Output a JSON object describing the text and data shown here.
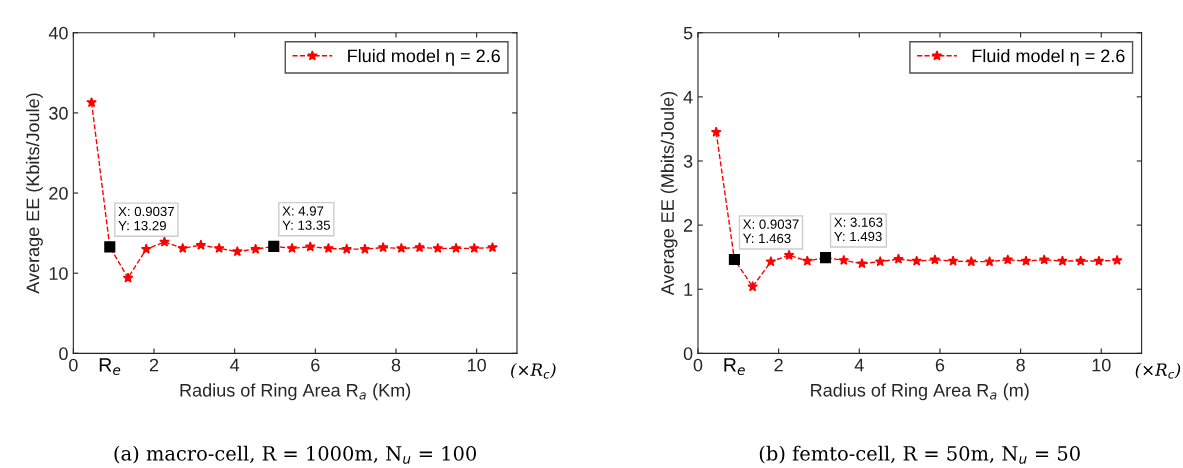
{
  "chart_data": [
    {
      "type": "line",
      "title": "(a) macro-cell, R = 1000m, N$_{u}$ = 100",
      "xlabel": "Radius of Ring Area R$_{a}$ (Km)",
      "ylabel": "Average EE (Kbits/Joule)",
      "x": [
        0.4518,
        0.9037,
        1.3555,
        1.8074,
        2.2592,
        2.7111,
        3.1629,
        3.6148,
        4.0666,
        4.5185,
        4.97,
        5.4222,
        5.874,
        6.3259,
        6.7777,
        7.2296,
        7.6814,
        8.1333,
        8.5851,
        9.037,
        9.4888,
        9.9407,
        10.3925
      ],
      "series": [
        {
          "name": "Fluid model η = 2.6",
          "color": "#ff0000",
          "values": [
            31.3,
            13.29,
            9.4,
            13.0,
            13.9,
            13.1,
            13.5,
            13.1,
            12.7,
            13.0,
            13.35,
            13.1,
            13.3,
            13.1,
            13.0,
            13.0,
            13.2,
            13.1,
            13.2,
            13.1,
            13.1,
            13.1,
            13.2
          ]
        }
      ],
      "xlim": [
        0,
        11
      ],
      "xticks": [
        0,
        2,
        4,
        6,
        8,
        10
      ],
      "ylim": [
        0,
        40
      ],
      "yticks": [
        0,
        10,
        20,
        30,
        40
      ],
      "annotations": [
        {
          "text": "X: 0.9037\nY: 13.29",
          "x": 0.9037,
          "y": 13.29
        },
        {
          "text": "X: 4.97\nY: 13.35",
          "x": 4.97,
          "y": 13.35
        },
        "R$_{e}$",
        "(×R$_{c}$)"
      ],
      "grid": false,
      "legend": "top right",
      "marker": "star",
      "line_style": "dashed"
    },
    {
      "type": "line",
      "title": "(b) femto-cell, R = 50m, N$_{u}$ = 50",
      "xlabel": "Radius of Ring Area R$_{a}$ (m)",
      "ylabel": "Average EE (Mbits/Joule)",
      "x": [
        0.4518,
        0.9037,
        1.3555,
        1.8074,
        2.2592,
        2.7111,
        3.163,
        3.6148,
        4.0666,
        4.5185,
        4.9703,
        5.4222,
        5.874,
        6.3259,
        6.7777,
        7.2296,
        7.6814,
        8.1333,
        8.5851,
        9.037,
        9.4888,
        9.9407,
        10.3925
      ],
      "series": [
        {
          "name": "Fluid model η = 2.6",
          "color": "#ff0000",
          "values": [
            3.45,
            1.463,
            1.04,
            1.43,
            1.53,
            1.44,
            1.493,
            1.45,
            1.4,
            1.43,
            1.47,
            1.44,
            1.46,
            1.44,
            1.43,
            1.43,
            1.46,
            1.44,
            1.46,
            1.44,
            1.44,
            1.44,
            1.45
          ]
        }
      ],
      "xlim": [
        0,
        11
      ],
      "xticks": [
        0,
        2,
        4,
        6,
        8,
        10
      ],
      "ylim": [
        0,
        5
      ],
      "yticks": [
        0,
        1,
        2,
        3,
        4,
        5
      ],
      "annotations": [
        {
          "text": "X: 0.9037\nY: 1.463",
          "x": 0.9037,
          "y": 1.463
        },
        {
          "text": "X: 3.163\nY: 1.493",
          "x": 3.163,
          "y": 1.493
        },
        "R$_{e}$",
        "(×R$_{c}$)"
      ],
      "grid": false,
      "legend": "top right",
      "marker": "star",
      "line_style": "dashed"
    }
  ]
}
